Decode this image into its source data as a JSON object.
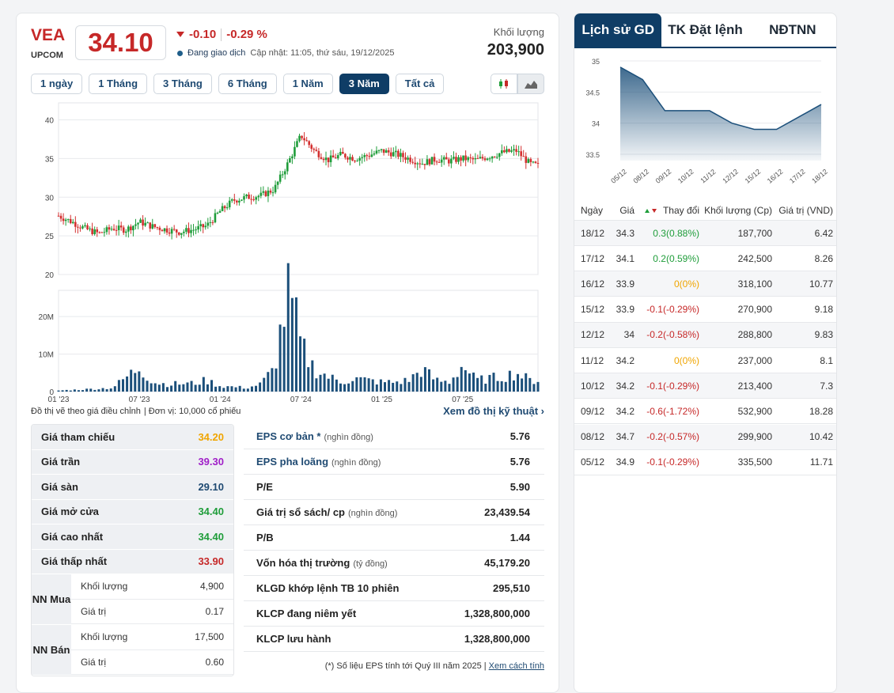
{
  "stock": {
    "ticker": "VEA",
    "exchange": "UPCOM",
    "price": "34.10",
    "change": "-0.10",
    "change_pct": "-0.29 %",
    "status": "Đang giao dịch",
    "updated": "Cập nhật: 11:05, thứ sáu, 19/12/2025",
    "volume_label": "Khối lượng",
    "volume": "203,900"
  },
  "ranges": [
    "1 ngày",
    "1 Tháng",
    "3 Tháng",
    "6 Tháng",
    "1 Năm",
    "3 Năm",
    "Tất cả"
  ],
  "active_range": "3 Năm",
  "chart_notes": {
    "adjusted": "Đồ thị vẽ theo giá điều chỉnh",
    "unit": "Đơn vị: 10,000 cổ phiếu",
    "tech_link": "Xem đồ thị kỹ thuật"
  },
  "chart_data": [
    {
      "type": "candlestick",
      "title": "",
      "y_ticks": [
        "40",
        "35",
        "30",
        "25",
        "20"
      ],
      "ylim": [
        20,
        42
      ],
      "x_ticks": [
        "01 '23",
        "07 '23",
        "01 '24",
        "07 '24",
        "01 '25",
        "07 '25"
      ],
      "x_tick_positions": [
        0,
        6,
        12,
        18,
        24,
        30
      ],
      "x_range": [
        0,
        35.6
      ],
      "close_points": [
        [
          0,
          27.6
        ],
        [
          1,
          26.8
        ],
        [
          2,
          25.9
        ],
        [
          3,
          25.3
        ],
        [
          4,
          26.0
        ],
        [
          5,
          25.8
        ],
        [
          6,
          26.8
        ],
        [
          7,
          26.2
        ],
        [
          8,
          25.8
        ],
        [
          9,
          25.5
        ],
        [
          10,
          25.8
        ],
        [
          11,
          26.3
        ],
        [
          12,
          28.2
        ],
        [
          13,
          29.6
        ],
        [
          14,
          30.0
        ],
        [
          15,
          30.2
        ],
        [
          16,
          31.0
        ],
        [
          17,
          34.3
        ],
        [
          18,
          38.0
        ],
        [
          19,
          36.0
        ],
        [
          20,
          34.8
        ],
        [
          21,
          35.5
        ],
        [
          22,
          35.0
        ],
        [
          23,
          35.4
        ],
        [
          24,
          36.0
        ],
        [
          25,
          35.6
        ],
        [
          26,
          35.0
        ],
        [
          27,
          34.4
        ],
        [
          28,
          34.9
        ],
        [
          29,
          34.7
        ],
        [
          30,
          35.0
        ],
        [
          31,
          34.8
        ],
        [
          32,
          35.3
        ],
        [
          33,
          35.8
        ],
        [
          34,
          36.0
        ],
        [
          35,
          34.3
        ],
        [
          35.6,
          34.1
        ]
      ]
    },
    {
      "type": "bar",
      "title": "",
      "y_ticks": [
        "20M",
        "10M",
        "0"
      ],
      "ylim": [
        0,
        27
      ],
      "x_ticks": [
        "01 '23",
        "07 '23",
        "01 '24",
        "07 '24",
        "01 '25",
        "07 '25"
      ],
      "volume_points_M": [
        [
          0,
          0.3
        ],
        [
          2,
          0.6
        ],
        [
          4,
          1.0
        ],
        [
          6,
          6.5
        ],
        [
          7,
          2.5
        ],
        [
          8,
          2.0
        ],
        [
          10,
          2.2
        ],
        [
          11,
          3.0
        ],
        [
          12,
          1.5
        ],
        [
          14,
          1.0
        ],
        [
          15,
          2.0
        ],
        [
          16,
          6.0
        ],
        [
          17,
          26.0
        ],
        [
          17.5,
          21.0
        ],
        [
          18,
          12.0
        ],
        [
          19,
          6.0
        ],
        [
          20,
          4.0
        ],
        [
          21,
          2.5
        ],
        [
          22,
          3.5
        ],
        [
          23,
          3.0
        ],
        [
          24,
          2.5
        ],
        [
          25,
          2.5
        ],
        [
          26,
          3.0
        ],
        [
          27,
          6.0
        ],
        [
          28,
          3.0
        ],
        [
          29,
          2.5
        ],
        [
          30,
          7.0
        ],
        [
          31,
          3.0
        ],
        [
          32,
          3.5
        ],
        [
          33,
          4.0
        ],
        [
          34,
          5.0
        ],
        [
          35,
          3.0
        ]
      ]
    },
    {
      "type": "area",
      "title": "",
      "categories": [
        "05/12",
        "08/12",
        "09/12",
        "10/12",
        "11/12",
        "12/12",
        "15/12",
        "16/12",
        "17/12",
        "18/12"
      ],
      "values": [
        34.9,
        34.7,
        34.2,
        34.2,
        34.2,
        34.0,
        33.9,
        33.9,
        34.1,
        34.3
      ],
      "y_ticks": [
        "35",
        "34.5",
        "34",
        "33.5"
      ],
      "ylim": [
        33.5,
        35
      ]
    }
  ],
  "price_table": [
    {
      "label": "Giá tham chiếu",
      "value": "34.20",
      "color": "#f0a500"
    },
    {
      "label": "Giá trần",
      "value": "39.30",
      "color": "#a020c8"
    },
    {
      "label": "Giá sàn",
      "value": "29.10",
      "color": "#1f4a72"
    },
    {
      "label": "Giá mở cửa",
      "value": "34.40",
      "color": "#1f9d3a"
    },
    {
      "label": "Giá cao nhất",
      "value": "34.40",
      "color": "#1f9d3a"
    },
    {
      "label": "Giá thấp nhất",
      "value": "33.90",
      "color": "#c62828"
    }
  ],
  "nn_buy": {
    "label": "NN Mua",
    "vol_label": "Khối lượng",
    "vol": "4,900",
    "val_label": "Giá trị",
    "val": "0.17"
  },
  "nn_sell": {
    "label": "NN Bán",
    "vol_label": "Khối lượng",
    "vol": "17,500",
    "val_label": "Giá trị",
    "val": "0.60"
  },
  "fundamentals": [
    {
      "label": "EPS cơ bản *",
      "unit": "(nghìn đồng)",
      "value": "5.76",
      "blue": true
    },
    {
      "label": "EPS pha loãng",
      "unit": "(nghìn đồng)",
      "value": "5.76",
      "blue": true
    },
    {
      "label": "P/E",
      "unit": "",
      "value": "5.90",
      "blue": false
    },
    {
      "label": "Giá trị sổ sách/ cp",
      "unit": "(nghìn đồng)",
      "value": "23,439.54",
      "blue": false
    },
    {
      "label": "P/B",
      "unit": "",
      "value": "1.44",
      "blue": false
    },
    {
      "label": "Vốn hóa thị trường",
      "unit": "(tỷ đồng)",
      "value": "45,179.20",
      "blue": false
    },
    {
      "label": "KLGD khớp lệnh TB 10 phiên",
      "unit": "",
      "value": "295,510",
      "blue": false
    },
    {
      "label": "KLCP đang niêm yết",
      "unit": "",
      "value": "1,328,800,000",
      "blue": false
    },
    {
      "label": "KLCP lưu hành",
      "unit": "",
      "value": "1,328,800,000",
      "blue": false
    }
  ],
  "footnote": {
    "text": "(*) Số liệu EPS tính tới Quý III năm 2025 |",
    "link": "Xem cách tính"
  },
  "side_tabs": [
    "Lịch sử GD",
    "TK Đặt lệnh",
    "NĐTNN"
  ],
  "history": {
    "headers": {
      "date": "Ngày",
      "price": "Giá",
      "change": "Thay đổi",
      "volume": "Khối lượng (Cp)",
      "value": "Giá trị (VND)"
    },
    "rows": [
      {
        "date": "18/12",
        "price": "34.3",
        "change": "0.3(0.88%)",
        "dir": "up",
        "volume": "187,700",
        "value": "6.42"
      },
      {
        "date": "17/12",
        "price": "34.1",
        "change": "0.2(0.59%)",
        "dir": "up",
        "volume": "242,500",
        "value": "8.26"
      },
      {
        "date": "16/12",
        "price": "33.9",
        "change": "0(0%)",
        "dir": "ref",
        "volume": "318,100",
        "value": "10.77"
      },
      {
        "date": "15/12",
        "price": "33.9",
        "change": "-0.1(-0.29%)",
        "dir": "dn",
        "volume": "270,900",
        "value": "9.18"
      },
      {
        "date": "12/12",
        "price": "34",
        "change": "-0.2(-0.58%)",
        "dir": "dn",
        "volume": "288,800",
        "value": "9.83"
      },
      {
        "date": "11/12",
        "price": "34.2",
        "change": "0(0%)",
        "dir": "ref",
        "volume": "237,000",
        "value": "8.1"
      },
      {
        "date": "10/12",
        "price": "34.2",
        "change": "-0.1(-0.29%)",
        "dir": "dn",
        "volume": "213,400",
        "value": "7.3"
      },
      {
        "date": "09/12",
        "price": "34.2",
        "change": "-0.6(-1.72%)",
        "dir": "dn",
        "volume": "532,900",
        "value": "18.28"
      },
      {
        "date": "08/12",
        "price": "34.7",
        "change": "-0.2(-0.57%)",
        "dir": "dn",
        "volume": "299,900",
        "value": "10.42"
      },
      {
        "date": "05/12",
        "price": "34.9",
        "change": "-0.1(-0.29%)",
        "dir": "dn",
        "volume": "335,500",
        "value": "11.71"
      }
    ]
  },
  "colors": {
    "up": "#1f9d3a",
    "down": "#d32f2f",
    "brand": "#0f3d66",
    "volume": "#1b4f7a"
  }
}
